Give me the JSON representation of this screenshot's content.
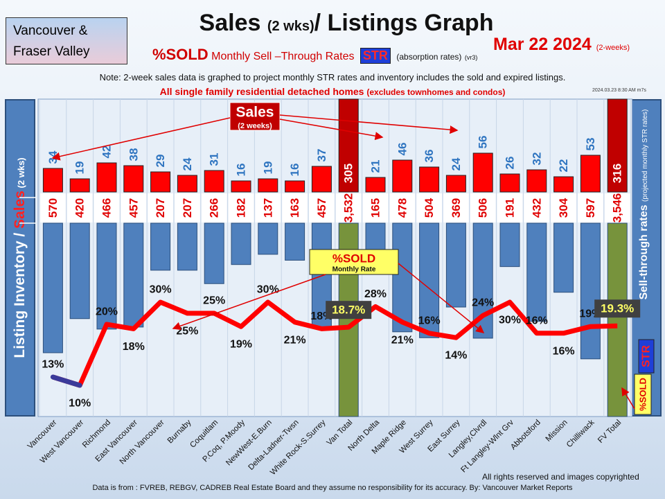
{
  "header": {
    "region_line1": "Vancouver &",
    "region_line2": "Fraser Valley",
    "title_main": "Sales",
    "title_small": "(2 wks)",
    "title_rest": "/ Listings Graph",
    "date": "Mar 22  2024",
    "date_note": "(2-weeks)",
    "subtitle_sold": "%SOLD",
    "subtitle_text": "Monthly Sell –Through Rates",
    "subtitle_str": "STR",
    "subtitle_absorption": "(absorption rates)",
    "subtitle_version": "(vr3)",
    "note": "Note: 2-week sales data is graphed to project monthly STR rates and inventory includes the sold and expired listings.",
    "scope": "All single family residential detached homes",
    "scope_small": "(excludes townhomes and condos)",
    "stamp": "2024.03.23 8:30 AM m7s"
  },
  "side_labels": {
    "left_part1": "Listing Inventory / ",
    "left_part2": "Sales",
    "left_part3": " (2  wks)",
    "right_main": "Sell-through  rates",
    "right_small": "(projected monthly STR rates)",
    "right_bottom_str": "STR",
    "right_bottom_sold": "%SOLD"
  },
  "callouts": {
    "sales_label": "Sales",
    "sales_sub": "(2 weeks)",
    "sold_label": "%SOLD",
    "sold_sub": "Monthly Rate"
  },
  "footer": {
    "rights": "All rights reserved and  images copyrighted",
    "source": "Data is from :  FVREB, REBGV, CADREB Real Estate Board and they assume no responsibility for its accuracy. By: Vancouver Market Reports"
  },
  "colors": {
    "sales_bar": "#ff0000",
    "total_sales_bar": "#c00000",
    "inventory_bar": "#4f80bd",
    "total_inventory_bar": "#77933c",
    "sales_text": "#2e74c0",
    "inventory_text": "#e00000",
    "line": "#ff0000",
    "highlight_box": "#ffff66"
  },
  "chart_data": {
    "type": "bar",
    "categories": [
      "Vancouver",
      "West Vancouver",
      "Richmond",
      "East Vancouver",
      "North Vancouver",
      "Burnaby",
      "Coquitlam",
      "P.Coq, P.Moody",
      "NewWest-E.Burn",
      "Delta-Ladner-Twsn",
      "White Rock-S.Surrey",
      "Van Total",
      "North Delta",
      "Maple Ridge",
      "West Surrey",
      "East Surrey",
      "Langley,Clvrdl",
      "Ft Langley-Wlnt Grv",
      "Abbotsford",
      "Mission",
      "Chilliwack",
      "FV Total"
    ],
    "series": [
      {
        "name": "Sales",
        "values": [
          34,
          19,
          42,
          38,
          29,
          24,
          31,
          16,
          19,
          16,
          37,
          305,
          21,
          46,
          36,
          24,
          56,
          26,
          32,
          22,
          53,
          316
        ]
      },
      {
        "name": "Listing Inventory",
        "values": [
          570,
          420,
          466,
          457,
          207,
          207,
          266,
          182,
          137,
          163,
          457,
          3532,
          165,
          478,
          504,
          369,
          506,
          191,
          432,
          304,
          597,
          3546
        ]
      },
      {
        "name": "%SOLD",
        "values": [
          13,
          10,
          20,
          18,
          30,
          25,
          25,
          19,
          30,
          21,
          18,
          18.7,
          28,
          21,
          16,
          14,
          24,
          30,
          16,
          16,
          19,
          19.3
        ]
      }
    ],
    "sales_labels": [
      "34",
      "19",
      "42",
      "38",
      "29",
      "24",
      "31",
      "16",
      "19",
      "16",
      "37",
      "305",
      "21",
      "46",
      "36",
      "24",
      "56",
      "26",
      "32",
      "22",
      "53",
      "316"
    ],
    "inventory_labels": [
      "570",
      "420",
      "466",
      "457",
      "207",
      "207",
      "266",
      "182",
      "137",
      "163",
      "457",
      "3,532",
      "165",
      "478",
      "504",
      "369",
      "506",
      "191",
      "432",
      "304",
      "597",
      "3,546"
    ],
    "str_labels": [
      "13%",
      "10%",
      "20%",
      "18%",
      "30%",
      "25%",
      "25%",
      "19%",
      "30%",
      "21%",
      "18%",
      "18.7%",
      "28%",
      "21%",
      "16%",
      "14%",
      "24%",
      "30%",
      "16%",
      "16%",
      "19%",
      "19.3%"
    ],
    "total_indices": [
      11,
      21
    ],
    "ylabel": "Listing Inventory / Sales (2 wks)",
    "y2label": "Sell-through  rates"
  }
}
